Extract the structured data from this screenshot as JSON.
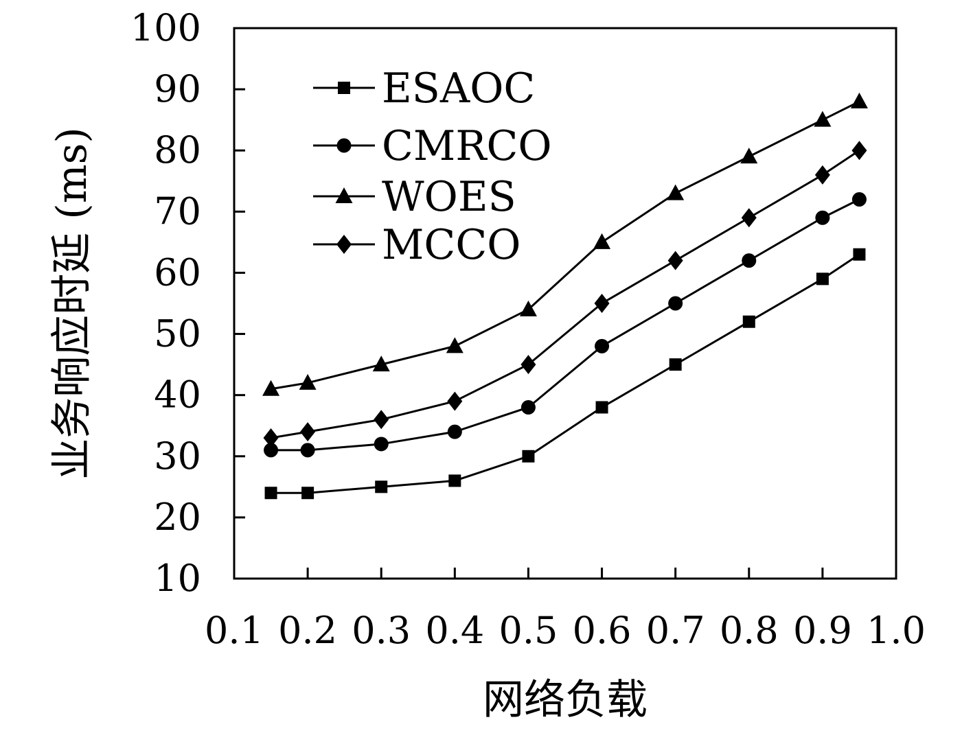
{
  "chart_data": {
    "type": "line",
    "xlabel": "网络负载",
    "ylabel": "业务响应时延 (ms)",
    "xlim": [
      0.1,
      1.0
    ],
    "ylim": [
      10,
      100
    ],
    "xticks": [
      "0.1",
      "0.2",
      "0.3",
      "0.4",
      "0.5",
      "0.6",
      "0.7",
      "0.8",
      "0.9",
      "1.0"
    ],
    "yticks": [
      "10",
      "20",
      "30",
      "40",
      "50",
      "60",
      "70",
      "80",
      "90",
      "100"
    ],
    "x": [
      0.15,
      0.2,
      0.3,
      0.4,
      0.5,
      0.6,
      0.7,
      0.8,
      0.9,
      0.95
    ],
    "legend_position": "top-left",
    "grid": false,
    "series": [
      {
        "name": "ESAOC",
        "marker": "square",
        "values": [
          24,
          24,
          25,
          26,
          30,
          38,
          45,
          52,
          59,
          63
        ]
      },
      {
        "name": "CMRCO",
        "marker": "circle",
        "values": [
          31,
          31,
          32,
          34,
          38,
          48,
          55,
          62,
          69,
          72
        ]
      },
      {
        "name": "WOES",
        "marker": "triangle",
        "values": [
          41,
          42,
          45,
          48,
          54,
          65,
          73,
          79,
          85,
          88
        ]
      },
      {
        "name": "MCCO",
        "marker": "diamond",
        "values": [
          33,
          34,
          36,
          39,
          45,
          55,
          62,
          69,
          76,
          80
        ]
      }
    ]
  }
}
